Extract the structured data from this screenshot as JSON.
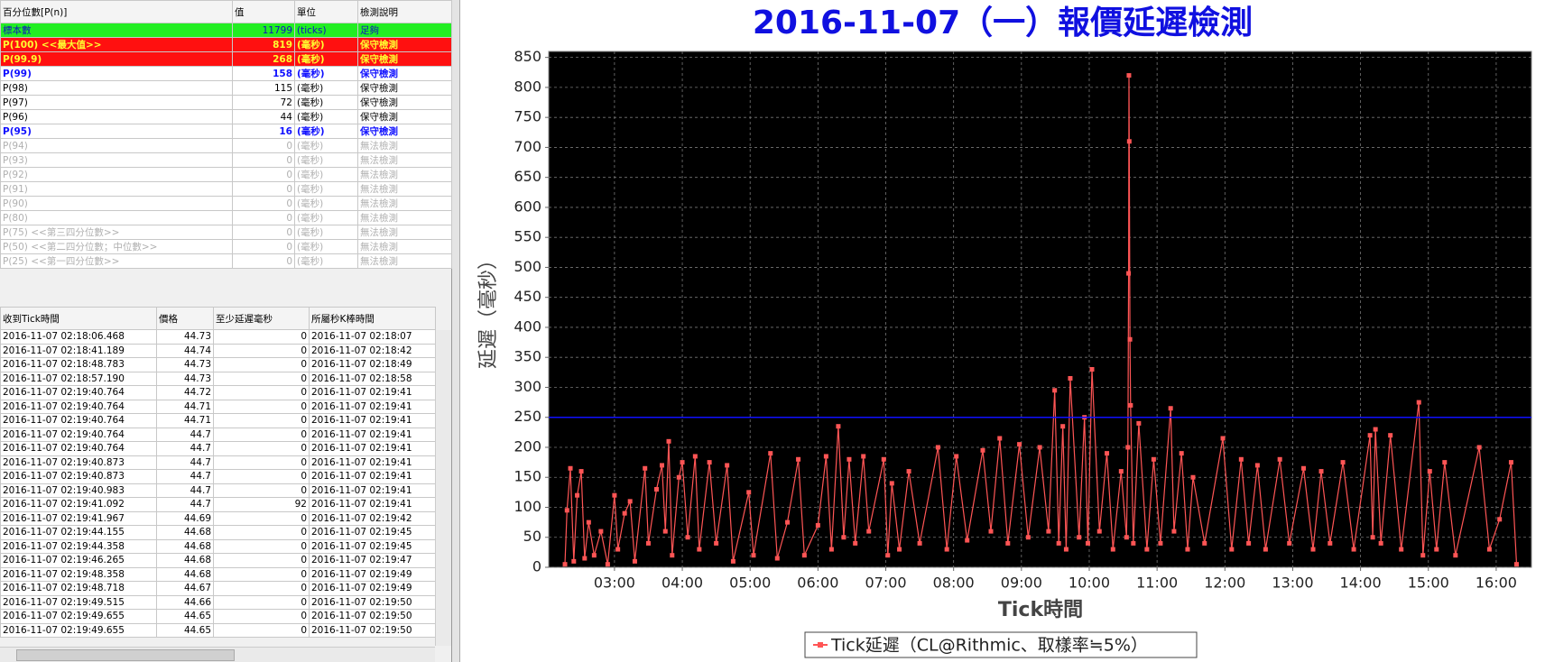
{
  "percentile_table": {
    "headers": [
      "百分位數[P(n)]",
      "值",
      "單位",
      "檢測說明"
    ],
    "rows": [
      [
        "標本數",
        "11799",
        "(ticks)",
        "足夠"
      ],
      [
        "P(100)  <<最大值>>",
        "819",
        "(毫秒)",
        "保守檢測"
      ],
      [
        "P(99.9)",
        "268",
        "(毫秒)",
        "保守檢測"
      ],
      [
        "P(99)",
        "158",
        "(毫秒)",
        "保守檢測"
      ],
      [
        "P(98)",
        "115",
        "(毫秒)",
        "保守檢測"
      ],
      [
        "P(97)",
        "72",
        "(毫秒)",
        "保守檢測"
      ],
      [
        "P(96)",
        "44",
        "(毫秒)",
        "保守檢測"
      ],
      [
        "P(95)",
        "16",
        "(毫秒)",
        "保守檢測"
      ],
      [
        "P(94)",
        "0",
        "(毫秒)",
        "無法檢測"
      ],
      [
        "P(93)",
        "0",
        "(毫秒)",
        "無法檢測"
      ],
      [
        "P(92)",
        "0",
        "(毫秒)",
        "無法檢測"
      ],
      [
        "P(91)",
        "0",
        "(毫秒)",
        "無法檢測"
      ],
      [
        "P(90)",
        "0",
        "(毫秒)",
        "無法檢測"
      ],
      [
        "P(80)",
        "0",
        "(毫秒)",
        "無法檢測"
      ],
      [
        "P(75)  <<第三四分位數>>",
        "0",
        "(毫秒)",
        "無法檢測"
      ],
      [
        "P(50)  <<第二四分位數；中位數>>",
        "0",
        "(毫秒)",
        "無法檢測"
      ],
      [
        "P(25)  <<第一四分位數>>",
        "0",
        "(毫秒)",
        "無法檢測"
      ]
    ]
  },
  "tick_table": {
    "headers": [
      "收到Tick時間",
      "價格",
      "至少延遲毫秒",
      "所屬秒K棒時間"
    ],
    "rows": [
      [
        "2016-11-07 02:18:06.468",
        "44.73",
        "0",
        "2016-11-07 02:18:07"
      ],
      [
        "2016-11-07 02:18:41.189",
        "44.74",
        "0",
        "2016-11-07 02:18:42"
      ],
      [
        "2016-11-07 02:18:48.783",
        "44.73",
        "0",
        "2016-11-07 02:18:49"
      ],
      [
        "2016-11-07 02:18:57.190",
        "44.73",
        "0",
        "2016-11-07 02:18:58"
      ],
      [
        "2016-11-07 02:19:40.764",
        "44.72",
        "0",
        "2016-11-07 02:19:41"
      ],
      [
        "2016-11-07 02:19:40.764",
        "44.71",
        "0",
        "2016-11-07 02:19:41"
      ],
      [
        "2016-11-07 02:19:40.764",
        "44.71",
        "0",
        "2016-11-07 02:19:41"
      ],
      [
        "2016-11-07 02:19:40.764",
        "44.7",
        "0",
        "2016-11-07 02:19:41"
      ],
      [
        "2016-11-07 02:19:40.764",
        "44.7",
        "0",
        "2016-11-07 02:19:41"
      ],
      [
        "2016-11-07 02:19:40.873",
        "44.7",
        "0",
        "2016-11-07 02:19:41"
      ],
      [
        "2016-11-07 02:19:40.873",
        "44.7",
        "0",
        "2016-11-07 02:19:41"
      ],
      [
        "2016-11-07 02:19:40.983",
        "44.7",
        "0",
        "2016-11-07 02:19:41"
      ],
      [
        "2016-11-07 02:19:41.092",
        "44.7",
        "92",
        "2016-11-07 02:19:41"
      ],
      [
        "2016-11-07 02:19:41.967",
        "44.69",
        "0",
        "2016-11-07 02:19:42"
      ],
      [
        "2016-11-07 02:19:44.155",
        "44.68",
        "0",
        "2016-11-07 02:19:45"
      ],
      [
        "2016-11-07 02:19:44.358",
        "44.68",
        "0",
        "2016-11-07 02:19:45"
      ],
      [
        "2016-11-07 02:19:46.265",
        "44.68",
        "0",
        "2016-11-07 02:19:47"
      ],
      [
        "2016-11-07 02:19:48.358",
        "44.68",
        "0",
        "2016-11-07 02:19:49"
      ],
      [
        "2016-11-07 02:19:48.718",
        "44.67",
        "0",
        "2016-11-07 02:19:49"
      ],
      [
        "2016-11-07 02:19:49.515",
        "44.66",
        "0",
        "2016-11-07 02:19:50"
      ],
      [
        "2016-11-07 02:19:49.655",
        "44.65",
        "0",
        "2016-11-07 02:19:50"
      ],
      [
        "2016-11-07 02:19:49.655",
        "44.65",
        "0",
        "2016-11-07 02:19:50"
      ]
    ]
  },
  "chart_data": {
    "type": "line",
    "title": "2016-11-07（一）報價延遲檢測",
    "x_label": "Tick時間",
    "y_label": "延遲（毫秒）",
    "xlim": [
      2.03,
      16.52
    ],
    "ylim": [
      0,
      860
    ],
    "xticks": [
      {
        "value": 3,
        "label": "03:00"
      },
      {
        "value": 4,
        "label": "04:00"
      },
      {
        "value": 5,
        "label": "05:00"
      },
      {
        "value": 6,
        "label": "06:00"
      },
      {
        "value": 7,
        "label": "07:00"
      },
      {
        "value": 8,
        "label": "08:00"
      },
      {
        "value": 9,
        "label": "09:00"
      },
      {
        "value": 10,
        "label": "10:00"
      },
      {
        "value": 11,
        "label": "11:00"
      },
      {
        "value": 12,
        "label": "12:00"
      },
      {
        "value": 13,
        "label": "13:00"
      },
      {
        "value": 14,
        "label": "14:00"
      },
      {
        "value": 15,
        "label": "15:00"
      },
      {
        "value": 16,
        "label": "16:00"
      }
    ],
    "yticks": [
      0,
      50,
      100,
      150,
      200,
      250,
      300,
      350,
      400,
      450,
      500,
      550,
      600,
      650,
      700,
      750,
      800,
      850
    ],
    "grid": true,
    "background": "#000000",
    "reference_line": {
      "value": 250,
      "color": "#1010ff"
    },
    "legend": "bottom",
    "x": [
      2.27,
      2.3,
      2.35,
      2.4,
      2.45,
      2.51,
      2.56,
      2.62,
      2.7,
      2.8,
      2.9,
      3.0,
      3.05,
      3.15,
      3.23,
      3.3,
      3.45,
      3.5,
      3.62,
      3.7,
      3.75,
      3.8,
      3.85,
      3.95,
      4.0,
      4.08,
      4.19,
      4.25,
      4.4,
      4.5,
      4.66,
      4.75,
      4.98,
      5.05,
      5.3,
      5.4,
      5.55,
      5.71,
      5.8,
      6.0,
      6.12,
      6.2,
      6.3,
      6.38,
      6.46,
      6.55,
      6.67,
      6.75,
      6.97,
      7.03,
      7.09,
      7.2,
      7.34,
      7.5,
      7.77,
      7.9,
      8.04,
      8.2,
      8.43,
      8.55,
      8.68,
      8.8,
      8.97,
      9.1,
      9.27,
      9.4,
      9.49,
      9.55,
      9.61,
      9.66,
      9.72,
      9.85,
      9.93,
      9.98,
      10.04,
      10.15,
      10.26,
      10.35,
      10.47,
      10.55,
      10.57,
      10.58,
      10.585,
      10.59,
      10.6,
      10.61,
      10.65,
      10.73,
      10.85,
      10.95,
      11.05,
      11.2,
      11.25,
      11.36,
      11.45,
      11.53,
      11.7,
      11.97,
      12.1,
      12.24,
      12.35,
      12.48,
      12.6,
      12.81,
      12.95,
      13.16,
      13.3,
      13.42,
      13.55,
      13.74,
      13.9,
      14.14,
      14.18,
      14.22,
      14.3,
      14.44,
      14.6,
      14.86,
      14.92,
      15.02,
      15.12,
      15.24,
      15.4,
      15.75,
      15.9,
      16.05,
      16.22,
      16.3
    ],
    "series": [
      {
        "name": "Tick延遲（CL@Rithmic、取樣率≒5%）",
        "color": "#ff5555",
        "values": [
          5,
          95,
          165,
          10,
          120,
          160,
          15,
          75,
          20,
          60,
          5,
          120,
          30,
          90,
          110,
          10,
          165,
          40,
          130,
          170,
          60,
          210,
          20,
          150,
          175,
          50,
          185,
          30,
          175,
          40,
          170,
          10,
          125,
          20,
          190,
          15,
          75,
          180,
          20,
          70,
          185,
          30,
          235,
          50,
          180,
          40,
          185,
          60,
          180,
          20,
          140,
          30,
          160,
          40,
          200,
          30,
          185,
          45,
          195,
          60,
          215,
          40,
          205,
          50,
          200,
          60,
          295,
          40,
          235,
          30,
          315,
          50,
          250,
          40,
          330,
          60,
          190,
          30,
          160,
          50,
          200,
          490,
          820,
          710,
          380,
          270,
          40,
          240,
          30,
          180,
          40,
          265,
          60,
          190,
          30,
          150,
          40,
          215,
          30,
          180,
          40,
          170,
          30,
          180,
          40,
          165,
          30,
          160,
          40,
          175,
          30,
          220,
          50,
          230,
          40,
          220,
          30,
          275,
          20,
          160,
          30,
          175,
          20,
          200,
          30,
          80,
          175,
          5
        ]
      }
    ]
  }
}
